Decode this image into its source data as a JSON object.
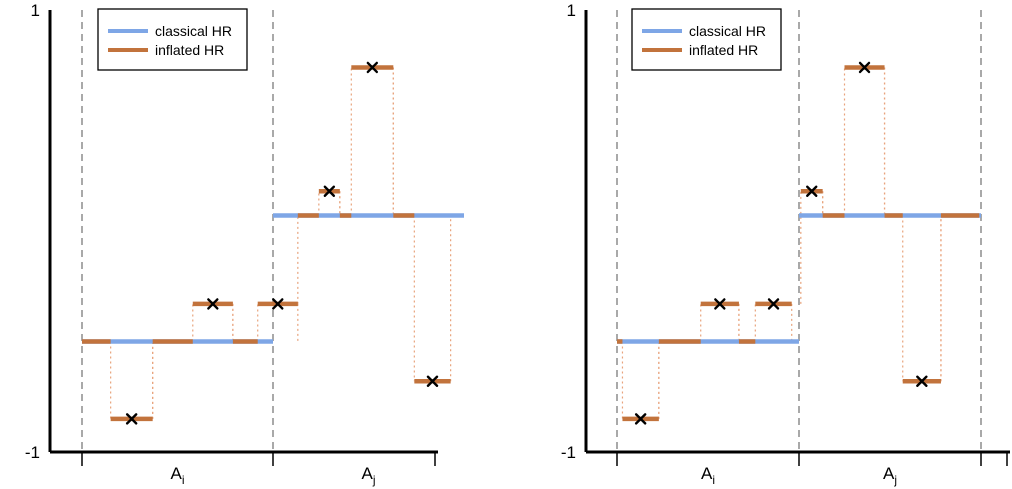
{
  "chart_data": [
    {
      "type": "line",
      "ylim": [
        -1,
        1
      ],
      "y_ticks": [
        "1",
        "-1"
      ],
      "regions": [
        {
          "base": "A",
          "sub": "i"
        },
        {
          "base": "A",
          "sub": "j"
        }
      ],
      "legend": {
        "position": "top-left",
        "entries": [
          "classical HR",
          "inflated HR"
        ]
      },
      "colors": {
        "classical": "#7ea6e6",
        "inflated": "#c2733c"
      },
      "classical": [
        {
          "region": 0,
          "y": -0.5
        },
        {
          "region": 1,
          "y": 0.07
        }
      ],
      "inflated": [
        {
          "x0": 0.0,
          "x1": 0.15,
          "y": -0.5,
          "marked": false
        },
        {
          "x0": 0.15,
          "x1": 0.37,
          "y": -0.85,
          "marked": true
        },
        {
          "x0": 0.37,
          "x1": 0.58,
          "y": -0.5,
          "marked": false
        },
        {
          "x0": 0.58,
          "x1": 0.79,
          "y": -0.33,
          "marked": true
        },
        {
          "x0": 0.79,
          "x1": 0.92,
          "y": -0.5,
          "marked": false
        },
        {
          "x0": 0.92,
          "x1": 1.13,
          "y": -0.33,
          "marked": true
        },
        {
          "x0": 1.13,
          "x1": 1.24,
          "y": 0.07,
          "marked": false
        },
        {
          "x0": 1.24,
          "x1": 1.35,
          "y": 0.18,
          "marked": true
        },
        {
          "x0": 1.35,
          "x1": 1.41,
          "y": 0.07,
          "marked": false
        },
        {
          "x0": 1.41,
          "x1": 1.63,
          "y": 0.74,
          "marked": true
        },
        {
          "x0": 1.63,
          "x1": 1.74,
          "y": 0.07,
          "marked": false
        },
        {
          "x0": 1.74,
          "x1": 1.93,
          "y": -0.68,
          "marked": true
        }
      ]
    },
    {
      "type": "line",
      "ylim": [
        -1,
        1
      ],
      "y_ticks": [
        "1",
        "-1"
      ],
      "regions": [
        {
          "base": "A",
          "sub": "i"
        },
        {
          "base": "A",
          "sub": "j"
        }
      ],
      "legend": {
        "position": "top-left",
        "entries": [
          "classical HR",
          "inflated HR"
        ]
      },
      "colors": {
        "classical": "#7ea6e6",
        "inflated": "#c2733c"
      },
      "classical": [
        {
          "region": 0,
          "y": -0.5
        },
        {
          "region": 1,
          "y": 0.07
        }
      ],
      "inflated": [
        {
          "x0": 0.0,
          "x1": 0.03,
          "y": -0.5,
          "marked": false
        },
        {
          "x0": 0.03,
          "x1": 0.23,
          "y": -0.85,
          "marked": true
        },
        {
          "x0": 0.23,
          "x1": 0.46,
          "y": -0.5,
          "marked": false
        },
        {
          "x0": 0.46,
          "x1": 0.67,
          "y": -0.33,
          "marked": true
        },
        {
          "x0": 0.67,
          "x1": 0.76,
          "y": -0.5,
          "marked": false
        },
        {
          "x0": 0.76,
          "x1": 0.96,
          "y": -0.33,
          "marked": true
        },
        {
          "x0": 1.01,
          "x1": 1.13,
          "y": 0.18,
          "marked": true
        },
        {
          "x0": 1.13,
          "x1": 1.25,
          "y": 0.07,
          "marked": false
        },
        {
          "x0": 1.25,
          "x1": 1.47,
          "y": 0.74,
          "marked": true
        },
        {
          "x0": 1.47,
          "x1": 1.57,
          "y": 0.07,
          "marked": false
        },
        {
          "x0": 1.57,
          "x1": 1.78,
          "y": -0.68,
          "marked": true
        },
        {
          "x0": 1.78,
          "x1": 1.99,
          "y": 0.07,
          "marked": false
        }
      ]
    }
  ]
}
